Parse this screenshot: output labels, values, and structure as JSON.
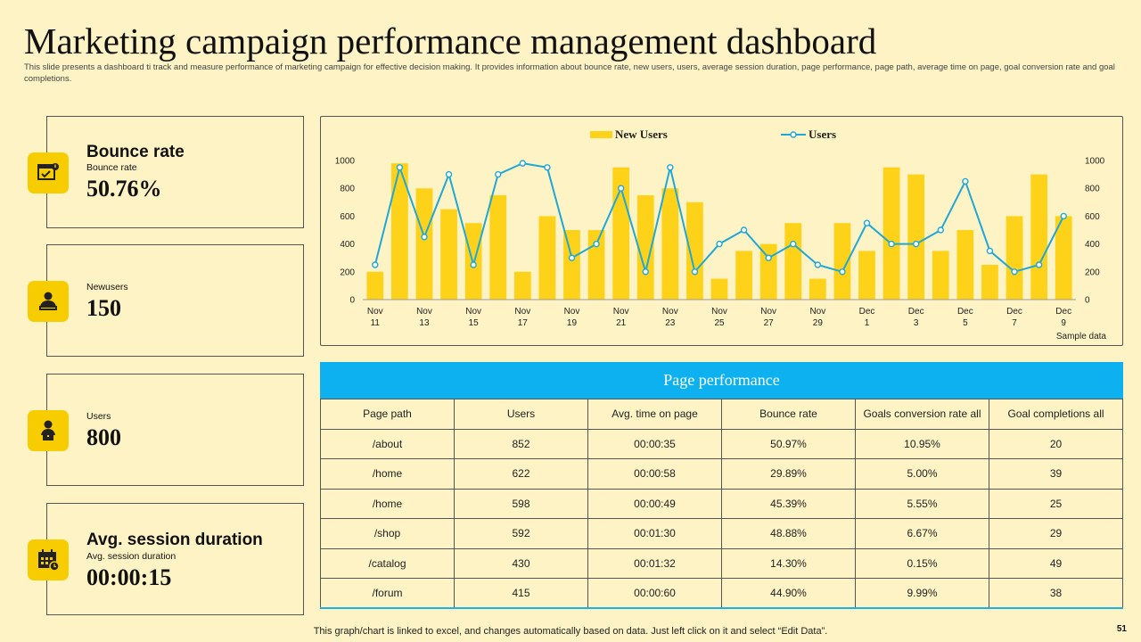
{
  "title": "Marketing campaign performance management dashboard",
  "subtitle": "This slide presents a dashboard ti track and measure performance of marketing campaign for effective decision making. It provides information about bounce rate, new users, users, average session duration, page performance, page path, average time on page, goal conversion rate and goal completions.",
  "kpis": [
    {
      "heading": "Bounce rate",
      "label": "Bounce rate",
      "value": "50.76%",
      "icon": "browser-check-icon"
    },
    {
      "heading": "",
      "label": "Newusers",
      "value": "150",
      "icon": "user-laptop-icon"
    },
    {
      "heading": "",
      "label": "Users",
      "value": "800",
      "icon": "user-desk-icon"
    },
    {
      "heading": "Avg. session duration",
      "label": "Avg. session duration",
      "value": "00:00:15",
      "icon": "calendar-clock-icon"
    }
  ],
  "chart_data": {
    "type": "bar",
    "note": "Sample data",
    "x_ticks": [
      "Nov\n11",
      "Nov\n13",
      "Nov\n15",
      "Nov\n17",
      "Nov\n19",
      "Nov\n21",
      "Nov\n23",
      "Nov\n25",
      "Nov\n27",
      "Nov\n29",
      "Dec\n1",
      "Dec\n3",
      "Dec\n5",
      "Dec\n7",
      "Dec\n9"
    ],
    "ylim": [
      0,
      1000
    ],
    "y_ticks": [
      0,
      200,
      400,
      600,
      800,
      1000
    ],
    "legend_position": "top",
    "series": [
      {
        "name": "New Users",
        "kind": "bar",
        "color": "#FFD21A",
        "values": [
          200,
          980,
          800,
          650,
          550,
          750,
          200,
          600,
          500,
          500,
          950,
          750,
          800,
          700,
          150,
          350,
          400,
          550,
          150,
          550,
          350,
          950,
          900,
          350,
          500,
          250,
          600,
          900,
          600
        ]
      },
      {
        "name": "Users",
        "kind": "line",
        "color": "#1EA8D8",
        "values": [
          250,
          950,
          450,
          900,
          250,
          900,
          980,
          950,
          300,
          400,
          800,
          200,
          950,
          200,
          400,
          500,
          300,
          400,
          250,
          200,
          550,
          400,
          400,
          500,
          850,
          350,
          200,
          250,
          600
        ]
      }
    ]
  },
  "table": {
    "title": "Page performance",
    "columns": [
      "Page path",
      "Users",
      "Avg. time on page",
      "Bounce rate",
      "Goals conversion rate all",
      "Goal completions all"
    ],
    "rows": [
      [
        "/about",
        "852",
        "00:00:35",
        "50.97%",
        "10.95%",
        "20"
      ],
      [
        "/home",
        "622",
        "00:00:58",
        "29.89%",
        "5.00%",
        "39"
      ],
      [
        "/home",
        "598",
        "00:00:49",
        "45.39%",
        "5.55%",
        "25"
      ],
      [
        "/shop",
        "592",
        "00:01:30",
        "48.88%",
        "6.67%",
        "29"
      ],
      [
        "/catalog",
        "430",
        "00:01:32",
        "14.30%",
        "0.15%",
        "49"
      ],
      [
        "/forum",
        "415",
        "00:00:60",
        "44.90%",
        "9.99%",
        "38"
      ]
    ]
  },
  "footer": "This graph/chart is linked to excel, and changes automatically based on data. Just left click on it and select “Edit Data”.",
  "page_number": "51"
}
